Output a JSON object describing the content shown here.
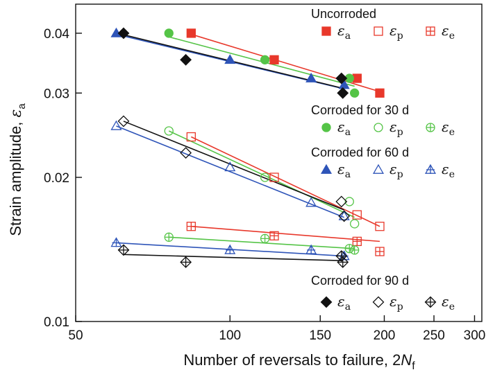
{
  "chart_data": {
    "type": "scatter",
    "title": "",
    "xlabel": "Number of reversals to failure, 2N_f",
    "xlabel_prefix": "Number of reversals to failure, 2",
    "xlabel_var": "N",
    "xlabel_sub": "f",
    "ylabel": "Strain amplitude, ε_a",
    "ylabel_prefix": "Strain amplitude, ",
    "ylabel_var": "ε",
    "ylabel_sub": "a",
    "xscale": "log",
    "yscale": "log",
    "xlim": [
      50,
      310
    ],
    "ylim": [
      0.01,
      0.046
    ],
    "x_ticks": [
      {
        "value": 50,
        "label": "50"
      },
      {
        "value": 100,
        "label": "100"
      },
      {
        "value": 150,
        "label": "150"
      },
      {
        "value": 200,
        "label": "200"
      },
      {
        "value": 250,
        "label": "250"
      },
      {
        "value": 300,
        "label": "300"
      }
    ],
    "y_ticks": [
      {
        "value": 0.01,
        "label": "0.01"
      },
      {
        "value": 0.02,
        "label": "0.02"
      },
      {
        "value": 0.03,
        "label": "0.03"
      },
      {
        "value": 0.04,
        "label": "0.04"
      }
    ],
    "conditions": [
      {
        "name": "Uncorroded",
        "color": "#e8382b",
        "shape": "square",
        "series": [
          {
            "name": "εa",
            "component": "a",
            "fill": "solid",
            "points": [
              [
                84,
                0.04
              ],
              [
                122,
                0.0352
              ],
              [
                177,
                0.0322
              ],
              [
                196,
                0.03
              ]
            ],
            "fit": [
              [
                84,
                0.0398
              ],
              [
                196,
                0.0302
              ]
            ]
          },
          {
            "name": "εp",
            "component": "p",
            "fill": "open",
            "points": [
              [
                84,
                0.0243
              ],
              [
                122,
                0.02
              ],
              [
                177,
                0.0167
              ],
              [
                196,
                0.0158
              ]
            ],
            "fit": [
              [
                84,
                0.0243
              ],
              [
                196,
                0.0158
              ]
            ]
          },
          {
            "name": "εe",
            "component": "e",
            "fill": "cross",
            "points": [
              [
                84,
                0.0158
              ],
              [
                122,
                0.0151
              ],
              [
                177,
                0.0147
              ],
              [
                196,
                0.014
              ]
            ],
            "fit": [
              [
                84,
                0.0158
              ],
              [
                196,
                0.0147
              ]
            ]
          }
        ]
      },
      {
        "name": "Corroded for 30 d",
        "color": "#55c447",
        "shape": "circle",
        "series": [
          {
            "name": "εa",
            "component": "a",
            "fill": "solid",
            "points": [
              [
                76,
                0.04
              ],
              [
                117,
                0.0352
              ],
              [
                171,
                0.0322
              ],
              [
                175,
                0.03
              ]
            ],
            "fit": [
              [
                76,
                0.0393
              ],
              [
                175,
                0.031
              ]
            ]
          },
          {
            "name": "εp",
            "component": "p",
            "fill": "open",
            "points": [
              [
                76,
                0.025
              ],
              [
                117,
                0.02
              ],
              [
                171,
                0.0178
              ],
              [
                175,
                0.016
              ]
            ],
            "fit": [
              [
                76,
                0.025
              ],
              [
                175,
                0.0165
              ]
            ]
          },
          {
            "name": "εe",
            "component": "e",
            "fill": "cross",
            "points": [
              [
                76,
                0.015
              ],
              [
                117,
                0.0149
              ],
              [
                171,
                0.0142
              ],
              [
                175,
                0.0141
              ]
            ],
            "fit": [
              [
                76,
                0.015
              ],
              [
                175,
                0.0142
              ]
            ]
          }
        ]
      },
      {
        "name": "Corroded for 60 d",
        "color": "#2e54b8",
        "shape": "triangle",
        "series": [
          {
            "name": "εa",
            "component": "a",
            "fill": "solid",
            "points": [
              [
                60,
                0.04
              ],
              [
                100,
                0.0352
              ],
              [
                144,
                0.0322
              ],
              [
                167,
                0.0312
              ]
            ],
            "fit": [
              [
                60,
                0.0398
              ],
              [
                167,
                0.0306
              ]
            ]
          },
          {
            "name": "εp",
            "component": "p",
            "fill": "open",
            "points": [
              [
                60,
                0.0256
              ],
              [
                100,
                0.021
              ],
              [
                144,
                0.0177
              ],
              [
                167,
                0.0166
              ]
            ],
            "fit": [
              [
                60,
                0.0256
              ],
              [
                167,
                0.0165
              ]
            ]
          },
          {
            "name": "εe",
            "component": "e",
            "fill": "cross",
            "points": [
              [
                60,
                0.0146
              ],
              [
                100,
                0.0141
              ],
              [
                144,
                0.0141
              ],
              [
                167,
                0.0137
              ]
            ],
            "fit": [
              [
                60,
                0.0146
              ],
              [
                167,
                0.0137
              ]
            ]
          }
        ]
      },
      {
        "name": "Corroded for 90 d",
        "color": "#111111",
        "shape": "diamond",
        "series": [
          {
            "name": "εa",
            "component": "a",
            "fill": "solid",
            "points": [
              [
                62,
                0.04
              ],
              [
                82,
                0.0352
              ],
              [
                165,
                0.0322
              ],
              [
                166,
                0.03
              ]
            ],
            "fit": [
              [
                62,
                0.0397
              ],
              [
                166,
                0.0307
              ]
            ]
          },
          {
            "name": "εp",
            "component": "p",
            "fill": "open",
            "points": [
              [
                62,
                0.0262
              ],
              [
                82,
                0.0225
              ],
              [
                165,
                0.0178
              ],
              [
                167,
                0.0166
              ]
            ],
            "fit": [
              [
                62,
                0.0262
              ],
              [
                167,
                0.0171
              ]
            ]
          },
          {
            "name": "εe",
            "component": "e",
            "fill": "cross",
            "points": [
              [
                62,
                0.0141
              ],
              [
                82,
                0.0133
              ],
              [
                165,
                0.0137
              ],
              [
                166,
                0.0133
              ]
            ],
            "fit": [
              [
                62,
                0.0138
              ],
              [
                166,
                0.0134
              ]
            ]
          }
        ]
      }
    ],
    "legend_position": "right"
  }
}
